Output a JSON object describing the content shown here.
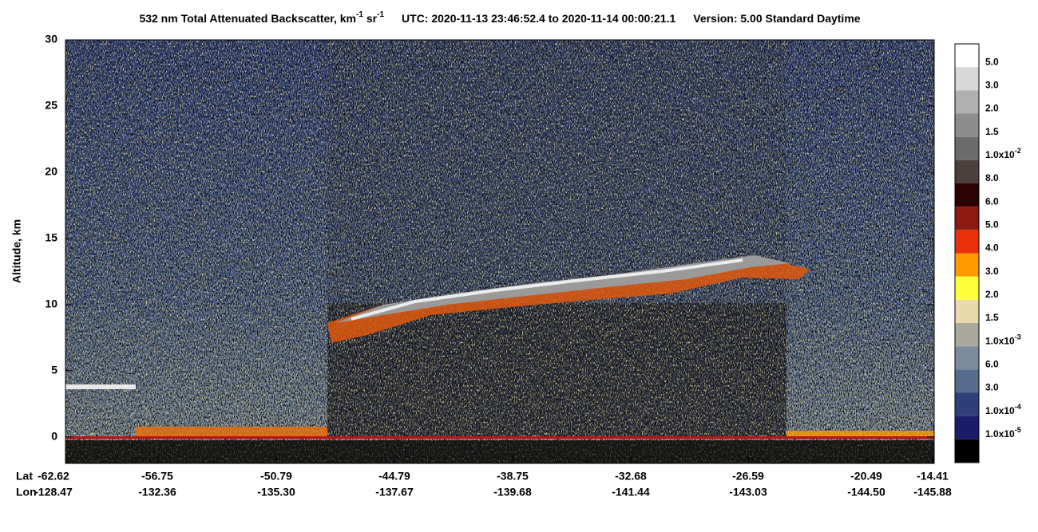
{
  "chart_data": {
    "type": "lidar-curtain",
    "title": {
      "text1": "532 nm Total Attenuated Backscatter, km",
      "sup1": "-1",
      "text2": "sr",
      "sup2": "-1",
      "utc": "UTC:  2020-11-13 23:46:52.4  to  2020-11-14 00:00:21.1",
      "version": "Version: 5.00  Standard  Daytime"
    },
    "y_label": "Altitude, km",
    "ylim": [
      -2,
      30
    ],
    "yticks": [
      0,
      5,
      10,
      15,
      20,
      25,
      30
    ],
    "x_row_labels": [
      "Lat",
      "Lon"
    ],
    "lat": [
      "-62.62",
      "-56.75",
      "-50.79",
      "-44.79",
      "-38.75",
      "-32.68",
      "-26.59",
      "-20.49",
      "-14.41"
    ],
    "lon": [
      "-128.47",
      "-132.36",
      "-135.30",
      "-137.67",
      "-139.68",
      "-141.44",
      "-143.03",
      "-144.50",
      "-145.88"
    ],
    "colorbar": {
      "colors": [
        "#ffffff",
        "#d8d8d8",
        "#b0b0b0",
        "#8e8e8e",
        "#6c6c6c",
        "#4b403c",
        "#2c0303",
        "#8c1a12",
        "#e8300c",
        "#ff9a00",
        "#ffff3a",
        "#ead9ad",
        "#a9a99e",
        "#7b8b9d",
        "#566d8e",
        "#2f4079",
        "#1c1c6c",
        "#000000"
      ],
      "labels": [
        {
          "mantissa": "5.0"
        },
        {
          "mantissa": "3.0"
        },
        {
          "mantissa": "2.0"
        },
        {
          "mantissa": "1.5"
        },
        {
          "mantissa": "1.0x10",
          "exponent": "-2"
        },
        {
          "mantissa": "8.0"
        },
        {
          "mantissa": "6.0"
        },
        {
          "mantissa": "5.0"
        },
        {
          "mantissa": "4.0"
        },
        {
          "mantissa": "3.0"
        },
        {
          "mantissa": "2.0"
        },
        {
          "mantissa": "1.5"
        },
        {
          "mantissa": "1.0x10",
          "exponent": "-3"
        },
        {
          "mantissa": "6.0"
        },
        {
          "mantissa": "3.0"
        },
        {
          "mantissa": "1.0x10",
          "exponent": "-4"
        },
        {
          "mantissa": "1.0x10",
          "exponent": "-5"
        }
      ]
    }
  }
}
